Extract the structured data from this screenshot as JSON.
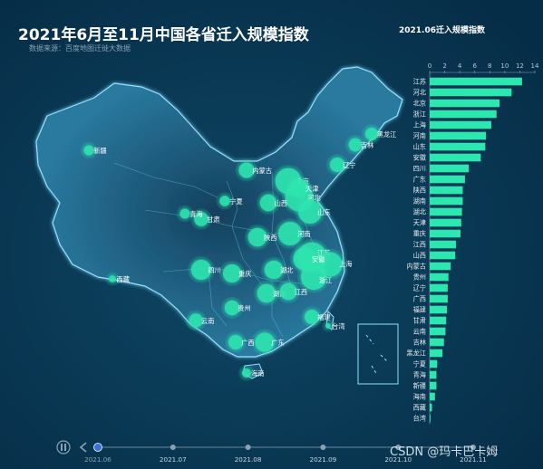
{
  "header": {
    "title": "2021年6月至11月中国各省迁入规模指数",
    "subtitle": "数据来源：百度地图迁徙大数据"
  },
  "watermark": "CSDN @玛卡巴卡姆",
  "colors": {
    "background": "#0b3a58",
    "accent": "#2ee6b0",
    "map_fill": "#1b5575",
    "map_border": "#8fe3ff",
    "timeline_active": "#3a6ee8"
  },
  "timeline": {
    "labels": [
      "2021.06",
      "2021.07",
      "2021.08",
      "2021.09",
      "2021.10",
      "2021.11"
    ],
    "current_index": 0,
    "controls": [
      "play-icon",
      "prev-icon"
    ]
  },
  "chart_data": [
    {
      "type": "bar",
      "orientation": "horizontal",
      "title": "2021.06迁入规模指数",
      "xlim": [
        0,
        14
      ],
      "xticks": [
        0,
        2,
        4,
        6,
        8,
        10,
        12,
        14
      ],
      "categories": [
        "江苏",
        "河北",
        "北京",
        "浙江",
        "上海",
        "河南",
        "山东",
        "安徽",
        "四川",
        "广东",
        "陕西",
        "湖南",
        "湖北",
        "天津",
        "重庆",
        "江西",
        "山西",
        "内蒙古",
        "贵州",
        "辽宁",
        "广西",
        "福建",
        "甘肃",
        "云南",
        "吉林",
        "黑龙江",
        "宁夏",
        "青海",
        "新疆",
        "海南",
        "西藏",
        "台湾"
      ],
      "values": [
        12.3,
        10.9,
        9.3,
        8.9,
        8.2,
        7.5,
        7.4,
        6.8,
        5.2,
        4.7,
        4.4,
        4.4,
        4.3,
        4.2,
        4.1,
        3.5,
        3.4,
        2.8,
        2.5,
        2.4,
        2.4,
        2.3,
        2.2,
        2.1,
        1.9,
        1.7,
        1.0,
        0.9,
        0.9,
        0.7,
        0.3,
        0.1
      ]
    },
    {
      "type": "scatter",
      "title": "",
      "points": [
        {
          "name": "江苏",
          "value": 12.3
        },
        {
          "name": "河北",
          "value": 10.9
        },
        {
          "name": "北京",
          "value": 9.3
        },
        {
          "name": "浙江",
          "value": 8.9
        },
        {
          "name": "上海",
          "value": 8.2
        },
        {
          "name": "河南",
          "value": 7.5
        },
        {
          "name": "山东",
          "value": 7.4
        },
        {
          "name": "安徽",
          "value": 6.8
        },
        {
          "name": "四川",
          "value": 5.2
        },
        {
          "name": "广东",
          "value": 4.7
        },
        {
          "name": "陕西",
          "value": 4.4
        },
        {
          "name": "湖南",
          "value": 4.4
        },
        {
          "name": "湖北",
          "value": 4.3
        },
        {
          "name": "天津",
          "value": 4.2
        },
        {
          "name": "重庆",
          "value": 4.1
        },
        {
          "name": "江西",
          "value": 3.5
        },
        {
          "name": "山西",
          "value": 3.4
        },
        {
          "name": "内蒙古",
          "value": 2.8
        },
        {
          "name": "贵州",
          "value": 2.5
        },
        {
          "name": "辽宁",
          "value": 2.4
        },
        {
          "name": "广西",
          "value": 2.4
        },
        {
          "name": "福建",
          "value": 2.3
        },
        {
          "name": "甘肃",
          "value": 2.2
        },
        {
          "name": "云南",
          "value": 2.1
        },
        {
          "name": "吉林",
          "value": 1.9
        },
        {
          "name": "黑龙江",
          "value": 1.7
        },
        {
          "name": "宁夏",
          "value": 1.0
        },
        {
          "name": "青海",
          "value": 0.9
        },
        {
          "name": "新疆",
          "value": 0.9
        },
        {
          "name": "海南",
          "value": 0.7
        },
        {
          "name": "西藏",
          "value": 0.3
        },
        {
          "name": "台湾",
          "value": 0.1
        }
      ]
    }
  ]
}
